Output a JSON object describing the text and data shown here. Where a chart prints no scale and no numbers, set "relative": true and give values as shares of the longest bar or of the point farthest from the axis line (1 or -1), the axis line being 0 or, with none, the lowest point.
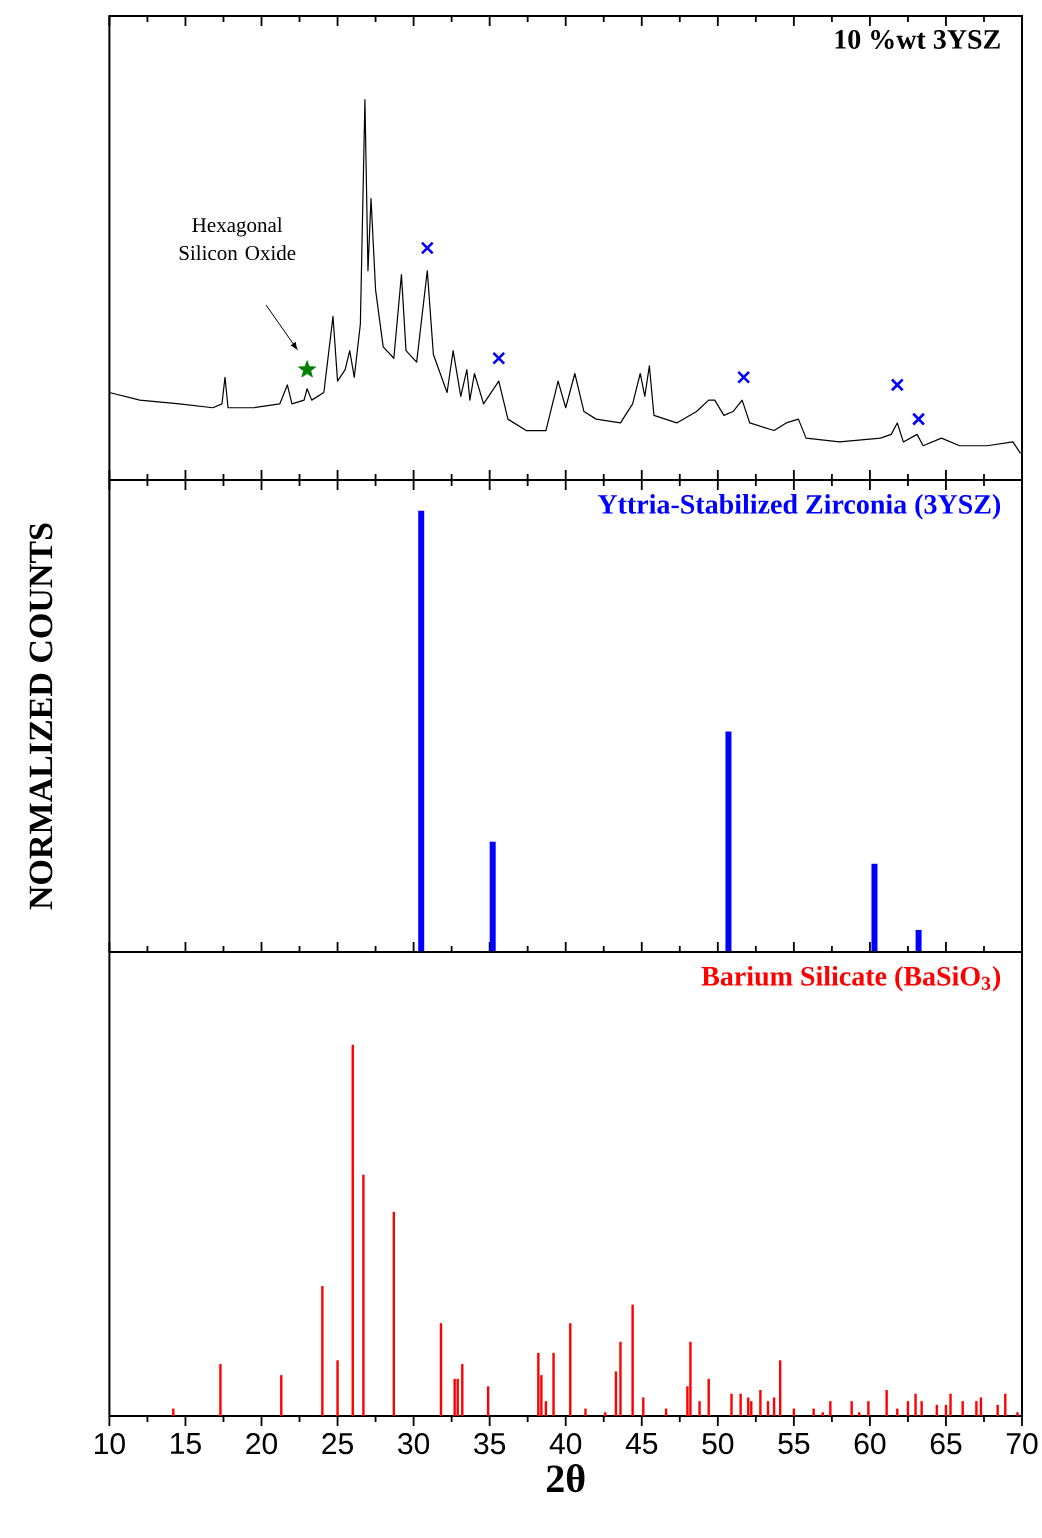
{
  "chart_data": [
    {
      "type": "line",
      "title": "10 %wt 3YSZ",
      "relative": true,
      "xlim": [
        10,
        70
      ],
      "xticks": [
        10,
        15,
        20,
        25,
        30,
        35,
        40,
        45,
        50,
        55,
        60,
        65,
        70
      ],
      "tick_labels": false,
      "series": [
        {
          "type": "line",
          "color": "#000000",
          "x": [
            10.0,
            12.0,
            14.6,
            16.8,
            17.4,
            17.6,
            17.8,
            19.5,
            21.2,
            21.7,
            22.0,
            22.8,
            23.0,
            23.3,
            24.1,
            24.7,
            25.0,
            25.5,
            25.8,
            26.1,
            26.5,
            26.8,
            27.0,
            27.2,
            27.5,
            28.0,
            28.7,
            29.2,
            29.5,
            30.2,
            30.9,
            31.3,
            32.2,
            32.6,
            33.1,
            33.5,
            33.7,
            34.0,
            34.6,
            35.6,
            36.2,
            37.4,
            38.7,
            39.5,
            40.0,
            40.6,
            41.2,
            42.0,
            43.6,
            44.4,
            44.9,
            45.2,
            45.5,
            45.8,
            47.3,
            48.6,
            49.4,
            49.8,
            50.4,
            51.0,
            51.6,
            52.1,
            53.7,
            54.5,
            55.3,
            55.8,
            58.0,
            60.7,
            61.4,
            61.8,
            62.2,
            63.1,
            63.5,
            64.7,
            65.9,
            67.7,
            69.4,
            69.9
          ],
          "values": [
            0.23,
            0.21,
            0.2,
            0.19,
            0.2,
            0.27,
            0.19,
            0.19,
            0.2,
            0.25,
            0.2,
            0.21,
            0.24,
            0.21,
            0.23,
            0.43,
            0.26,
            0.29,
            0.34,
            0.27,
            0.41,
            1.0,
            0.55,
            0.74,
            0.5,
            0.35,
            0.32,
            0.54,
            0.34,
            0.31,
            0.55,
            0.33,
            0.23,
            0.34,
            0.22,
            0.29,
            0.21,
            0.28,
            0.2,
            0.26,
            0.16,
            0.13,
            0.13,
            0.26,
            0.19,
            0.28,
            0.18,
            0.16,
            0.15,
            0.2,
            0.28,
            0.22,
            0.3,
            0.17,
            0.15,
            0.18,
            0.21,
            0.21,
            0.17,
            0.18,
            0.21,
            0.15,
            0.13,
            0.15,
            0.16,
            0.11,
            0.1,
            0.11,
            0.12,
            0.15,
            0.1,
            0.12,
            0.09,
            0.11,
            0.09,
            0.09,
            0.1,
            0.07
          ]
        },
        {
          "type": "scatter",
          "color": "#0000ff",
          "marker": "cross",
          "x": [
            30.9,
            35.6,
            51.7,
            61.8,
            63.2
          ],
          "values": [
            0.61,
            0.32,
            0.27,
            0.25,
            0.16
          ]
        },
        {
          "type": "scatter",
          "color": "#008000",
          "marker": "star",
          "x": [
            23.0
          ],
          "values": [
            0.29
          ]
        }
      ],
      "annotations": [
        "Hexagonal Silicon Oxide"
      ]
    },
    {
      "type": "bar",
      "title": "Yttria-Stabilized Zirconia (3YSZ)",
      "ylabel": "NORMALIZED COUNTS",
      "relative": true,
      "xlim": [
        10,
        70
      ],
      "xticks": [
        10,
        15,
        20,
        25,
        30,
        35,
        40,
        45,
        50,
        55,
        60,
        65,
        70
      ],
      "tick_labels": false,
      "series": [
        {
          "color": "#0000ff",
          "x": [
            30.5,
            35.2,
            50.7,
            60.3,
            63.2
          ],
          "values": [
            1.0,
            0.25,
            0.5,
            0.2,
            0.05
          ]
        }
      ]
    },
    {
      "type": "bar",
      "title": "Barium Silicate (BaSiO$_{3}$)",
      "xlabel": "2θ",
      "relative": true,
      "xlim": [
        10,
        70
      ],
      "xticks": [
        {
          "value": 10,
          "label": "10"
        },
        {
          "value": 15,
          "label": "15"
        },
        {
          "value": 20,
          "label": "20"
        },
        {
          "value": 25,
          "label": "25"
        },
        {
          "value": 30,
          "label": "30"
        },
        {
          "value": 35,
          "label": "35"
        },
        {
          "value": 40,
          "label": "40"
        },
        {
          "value": 45,
          "label": "45"
        },
        {
          "value": 50,
          "label": "50"
        },
        {
          "value": 55,
          "label": "55"
        },
        {
          "value": 60,
          "label": "60"
        },
        {
          "value": 65,
          "label": "65"
        },
        {
          "value": 70,
          "label": "70"
        }
      ],
      "tick_labels": "x",
      "series": [
        {
          "color": "#ff0000",
          "x": [
            14.2,
            17.3,
            21.3,
            24.0,
            25.0,
            26.0,
            26.7,
            28.7,
            31.8,
            32.7,
            32.9,
            33.2,
            34.9,
            38.2,
            38.4,
            38.7,
            39.2,
            40.3,
            41.3,
            42.6,
            43.3,
            43.6,
            44.4,
            45.1,
            46.6,
            48.0,
            48.2,
            48.8,
            49.4,
            50.9,
            51.5,
            52.0,
            52.2,
            52.8,
            53.3,
            53.7,
            54.1,
            55.0,
            56.3,
            56.9,
            57.4,
            58.8,
            59.3,
            59.9,
            61.1,
            61.8,
            62.5,
            63.0,
            63.4,
            64.4,
            65.0,
            65.3,
            66.1,
            67.0,
            67.3,
            68.4,
            68.9,
            69.7
          ],
          "values": [
            0.02,
            0.14,
            0.11,
            0.35,
            0.15,
            1.0,
            0.65,
            0.55,
            0.25,
            0.1,
            0.1,
            0.14,
            0.08,
            0.17,
            0.11,
            0.04,
            0.17,
            0.25,
            0.02,
            0.01,
            0.12,
            0.2,
            0.3,
            0.05,
            0.02,
            0.08,
            0.2,
            0.04,
            0.1,
            0.06,
            0.06,
            0.05,
            0.04,
            0.07,
            0.04,
            0.05,
            0.15,
            0.02,
            0.02,
            0.01,
            0.04,
            0.04,
            0.01,
            0.04,
            0.07,
            0.02,
            0.04,
            0.06,
            0.04,
            0.03,
            0.03,
            0.06,
            0.04,
            0.04,
            0.05,
            0.03,
            0.06,
            0.01
          ]
        }
      ]
    }
  ]
}
